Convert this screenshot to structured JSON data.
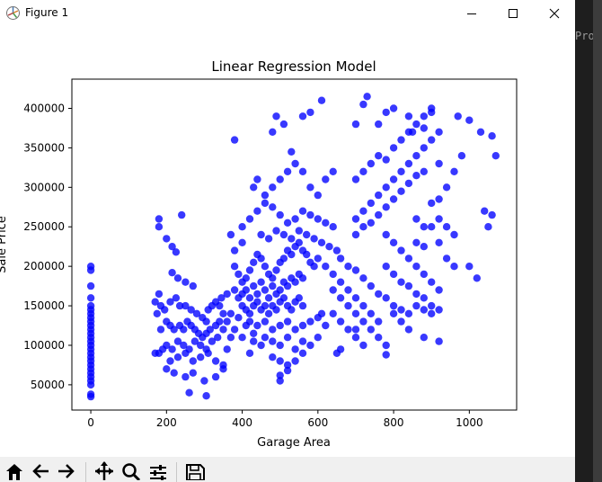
{
  "window": {
    "title": "Figure 1",
    "controls": {
      "minimize": "minimize",
      "maximize": "maximize",
      "close": "close"
    }
  },
  "background_app": {
    "text": "Proj"
  },
  "toolbar": {
    "buttons": [
      "home-icon",
      "back-icon",
      "forward-icon",
      "pan-icon",
      "zoom-icon",
      "configure-icon",
      "save-icon"
    ]
  },
  "chart_data": {
    "type": "scatter",
    "title": "Linear Regression Model",
    "xlabel": "Garage Area",
    "ylabel": "Sale Price",
    "xlim": [
      -50,
      1125
    ],
    "ylim": [
      18000,
      437000
    ],
    "xticks": [
      0,
      200,
      400,
      600,
      800,
      1000
    ],
    "yticks": [
      50000,
      100000,
      150000,
      200000,
      250000,
      300000,
      350000,
      400000
    ],
    "grid": false,
    "marker_color": "#0000ff",
    "points": [
      [
        0,
        35000
      ],
      [
        0,
        38000
      ],
      [
        0,
        50000
      ],
      [
        0,
        55000
      ],
      [
        0,
        60000
      ],
      [
        0,
        65000
      ],
      [
        0,
        70000
      ],
      [
        0,
        75000
      ],
      [
        0,
        80000
      ],
      [
        0,
        85000
      ],
      [
        0,
        90000
      ],
      [
        0,
        95000
      ],
      [
        0,
        100000
      ],
      [
        0,
        105000
      ],
      [
        0,
        110000
      ],
      [
        0,
        115000
      ],
      [
        0,
        120000
      ],
      [
        0,
        125000
      ],
      [
        0,
        130000
      ],
      [
        0,
        135000
      ],
      [
        0,
        140000
      ],
      [
        0,
        145000
      ],
      [
        0,
        150000
      ],
      [
        0,
        160000
      ],
      [
        0,
        175000
      ],
      [
        0,
        195000
      ],
      [
        0,
        200000
      ],
      [
        180,
        260000
      ],
      [
        180,
        250000
      ],
      [
        200,
        235000
      ],
      [
        215,
        225000
      ],
      [
        225,
        218000
      ],
      [
        240,
        265000
      ],
      [
        215,
        192000
      ],
      [
        230,
        185000
      ],
      [
        250,
        180000
      ],
      [
        270,
        175000
      ],
      [
        180,
        165000
      ],
      [
        185,
        150000
      ],
      [
        170,
        155000
      ],
      [
        175,
        140000
      ],
      [
        195,
        145000
      ],
      [
        210,
        155000
      ],
      [
        225,
        160000
      ],
      [
        235,
        150000
      ],
      [
        250,
        150000
      ],
      [
        265,
        145000
      ],
      [
        280,
        140000
      ],
      [
        295,
        135000
      ],
      [
        305,
        130000
      ],
      [
        310,
        145000
      ],
      [
        320,
        150000
      ],
      [
        330,
        155000
      ],
      [
        345,
        160000
      ],
      [
        360,
        165000
      ],
      [
        200,
        130000
      ],
      [
        210,
        125000
      ],
      [
        220,
        120000
      ],
      [
        235,
        125000
      ],
      [
        245,
        120000
      ],
      [
        255,
        130000
      ],
      [
        265,
        125000
      ],
      [
        275,
        120000
      ],
      [
        285,
        115000
      ],
      [
        295,
        110000
      ],
      [
        305,
        115000
      ],
      [
        315,
        120000
      ],
      [
        330,
        125000
      ],
      [
        340,
        130000
      ],
      [
        200,
        100000
      ],
      [
        215,
        95000
      ],
      [
        230,
        105000
      ],
      [
        245,
        100000
      ],
      [
        260,
        95000
      ],
      [
        275,
        105000
      ],
      [
        290,
        100000
      ],
      [
        305,
        95000
      ],
      [
        320,
        105000
      ],
      [
        335,
        110000
      ],
      [
        210,
        80000
      ],
      [
        230,
        85000
      ],
      [
        250,
        90000
      ],
      [
        270,
        80000
      ],
      [
        290,
        85000
      ],
      [
        310,
        90000
      ],
      [
        330,
        80000
      ],
      [
        350,
        75000
      ],
      [
        180,
        90000
      ],
      [
        200,
        70000
      ],
      [
        220,
        65000
      ],
      [
        250,
        60000
      ],
      [
        270,
        65000
      ],
      [
        300,
        55000
      ],
      [
        330,
        60000
      ],
      [
        350,
        70000
      ],
      [
        260,
        40000
      ],
      [
        305,
        36000
      ],
      [
        190,
        95000
      ],
      [
        185,
        120000
      ],
      [
        170,
        90000
      ],
      [
        380,
        200000
      ],
      [
        390,
        190000
      ],
      [
        400,
        180000
      ],
      [
        410,
        185000
      ],
      [
        420,
        195000
      ],
      [
        430,
        205000
      ],
      [
        440,
        215000
      ],
      [
        450,
        210000
      ],
      [
        460,
        200000
      ],
      [
        470,
        190000
      ],
      [
        480,
        185000
      ],
      [
        490,
        195000
      ],
      [
        500,
        205000
      ],
      [
        510,
        210000
      ],
      [
        520,
        220000
      ],
      [
        530,
        215000
      ],
      [
        540,
        225000
      ],
      [
        550,
        230000
      ],
      [
        560,
        220000
      ],
      [
        570,
        215000
      ],
      [
        580,
        205000
      ],
      [
        590,
        200000
      ],
      [
        600,
        210000
      ],
      [
        380,
        170000
      ],
      [
        390,
        160000
      ],
      [
        400,
        165000
      ],
      [
        410,
        170000
      ],
      [
        420,
        160000
      ],
      [
        430,
        175000
      ],
      [
        440,
        165000
      ],
      [
        450,
        180000
      ],
      [
        460,
        170000
      ],
      [
        470,
        160000
      ],
      [
        480,
        175000
      ],
      [
        490,
        165000
      ],
      [
        500,
        170000
      ],
      [
        510,
        180000
      ],
      [
        520,
        175000
      ],
      [
        530,
        185000
      ],
      [
        540,
        180000
      ],
      [
        550,
        190000
      ],
      [
        560,
        185000
      ],
      [
        400,
        150000
      ],
      [
        410,
        145000
      ],
      [
        420,
        140000
      ],
      [
        430,
        150000
      ],
      [
        440,
        155000
      ],
      [
        450,
        145000
      ],
      [
        460,
        150000
      ],
      [
        470,
        140000
      ],
      [
        480,
        150000
      ],
      [
        490,
        145000
      ],
      [
        500,
        155000
      ],
      [
        510,
        160000
      ],
      [
        520,
        150000
      ],
      [
        530,
        145000
      ],
      [
        540,
        155000
      ],
      [
        550,
        160000
      ],
      [
        560,
        150000
      ],
      [
        420,
        130000
      ],
      [
        440,
        125000
      ],
      [
        460,
        130000
      ],
      [
        480,
        120000
      ],
      [
        500,
        125000
      ],
      [
        520,
        130000
      ],
      [
        540,
        120000
      ],
      [
        560,
        125000
      ],
      [
        580,
        130000
      ],
      [
        600,
        135000
      ],
      [
        460,
        110000
      ],
      [
        480,
        105000
      ],
      [
        500,
        100000
      ],
      [
        520,
        110000
      ],
      [
        540,
        95000
      ],
      [
        560,
        105000
      ],
      [
        580,
        100000
      ],
      [
        600,
        110000
      ],
      [
        480,
        85000
      ],
      [
        500,
        80000
      ],
      [
        520,
        75000
      ],
      [
        540,
        80000
      ],
      [
        560,
        90000
      ],
      [
        500,
        62000
      ],
      [
        520,
        68000
      ],
      [
        500,
        55000
      ],
      [
        360,
        95000
      ],
      [
        370,
        110000
      ],
      [
        350,
        120000
      ],
      [
        360,
        130000
      ],
      [
        370,
        140000
      ],
      [
        380,
        120000
      ],
      [
        390,
        135000
      ],
      [
        350,
        140000
      ],
      [
        340,
        150000
      ],
      [
        410,
        125000
      ],
      [
        400,
        110000
      ],
      [
        430,
        115000
      ],
      [
        450,
        100000
      ],
      [
        420,
        90000
      ],
      [
        430,
        105000
      ],
      [
        400,
        250000
      ],
      [
        420,
        260000
      ],
      [
        440,
        270000
      ],
      [
        460,
        280000
      ],
      [
        480,
        275000
      ],
      [
        500,
        265000
      ],
      [
        520,
        255000
      ],
      [
        540,
        260000
      ],
      [
        560,
        270000
      ],
      [
        580,
        265000
      ],
      [
        600,
        260000
      ],
      [
        620,
        255000
      ],
      [
        640,
        250000
      ],
      [
        450,
        240000
      ],
      [
        470,
        235000
      ],
      [
        490,
        245000
      ],
      [
        510,
        240000
      ],
      [
        530,
        235000
      ],
      [
        550,
        245000
      ],
      [
        570,
        240000
      ],
      [
        590,
        235000
      ],
      [
        610,
        230000
      ],
      [
        630,
        225000
      ],
      [
        650,
        220000
      ],
      [
        400,
        230000
      ],
      [
        380,
        220000
      ],
      [
        370,
        240000
      ],
      [
        430,
        300000
      ],
      [
        440,
        310000
      ],
      [
        460,
        290000
      ],
      [
        480,
        300000
      ],
      [
        500,
        310000
      ],
      [
        520,
        320000
      ],
      [
        540,
        330000
      ],
      [
        560,
        320000
      ],
      [
        580,
        300000
      ],
      [
        600,
        290000
      ],
      [
        620,
        310000
      ],
      [
        640,
        320000
      ],
      [
        480,
        370000
      ],
      [
        490,
        390000
      ],
      [
        510,
        380000
      ],
      [
        530,
        345000
      ],
      [
        560,
        390000
      ],
      [
        580,
        395000
      ],
      [
        610,
        410000
      ],
      [
        380,
        360000
      ],
      [
        620,
        200000
      ],
      [
        640,
        190000
      ],
      [
        660,
        180000
      ],
      [
        680,
        170000
      ],
      [
        700,
        160000
      ],
      [
        720,
        150000
      ],
      [
        740,
        140000
      ],
      [
        760,
        130000
      ],
      [
        660,
        210000
      ],
      [
        680,
        200000
      ],
      [
        700,
        195000
      ],
      [
        720,
        185000
      ],
      [
        740,
        175000
      ],
      [
        760,
        165000
      ],
      [
        780,
        160000
      ],
      [
        800,
        150000
      ],
      [
        640,
        170000
      ],
      [
        660,
        160000
      ],
      [
        680,
        150000
      ],
      [
        700,
        140000
      ],
      [
        720,
        130000
      ],
      [
        740,
        120000
      ],
      [
        760,
        110000
      ],
      [
        780,
        100000
      ],
      [
        640,
        140000
      ],
      [
        660,
        130000
      ],
      [
        680,
        120000
      ],
      [
        700,
        110000
      ],
      [
        720,
        100000
      ],
      [
        650,
        90000
      ],
      [
        660,
        95000
      ],
      [
        700,
        120000
      ],
      [
        620,
        125000
      ],
      [
        610,
        140000
      ],
      [
        700,
        260000
      ],
      [
        720,
        270000
      ],
      [
        740,
        280000
      ],
      [
        760,
        290000
      ],
      [
        780,
        300000
      ],
      [
        800,
        310000
      ],
      [
        820,
        320000
      ],
      [
        840,
        330000
      ],
      [
        860,
        340000
      ],
      [
        880,
        350000
      ],
      [
        900,
        360000
      ],
      [
        920,
        370000
      ],
      [
        700,
        240000
      ],
      [
        720,
        250000
      ],
      [
        740,
        255000
      ],
      [
        760,
        265000
      ],
      [
        780,
        275000
      ],
      [
        800,
        285000
      ],
      [
        820,
        295000
      ],
      [
        840,
        305000
      ],
      [
        860,
        315000
      ],
      [
        880,
        320000
      ],
      [
        700,
        310000
      ],
      [
        720,
        320000
      ],
      [
        740,
        330000
      ],
      [
        760,
        340000
      ],
      [
        780,
        335000
      ],
      [
        800,
        350000
      ],
      [
        820,
        360000
      ],
      [
        840,
        370000
      ],
      [
        860,
        380000
      ],
      [
        880,
        390000
      ],
      [
        900,
        395000
      ],
      [
        700,
        380000
      ],
      [
        720,
        405000
      ],
      [
        730,
        415000
      ],
      [
        760,
        380000
      ],
      [
        780,
        395000
      ],
      [
        800,
        400000
      ],
      [
        840,
        390000
      ],
      [
        850,
        370000
      ],
      [
        880,
        375000
      ],
      [
        900,
        400000
      ],
      [
        780,
        240000
      ],
      [
        800,
        230000
      ],
      [
        820,
        220000
      ],
      [
        840,
        210000
      ],
      [
        860,
        200000
      ],
      [
        880,
        190000
      ],
      [
        900,
        180000
      ],
      [
        920,
        170000
      ],
      [
        780,
        200000
      ],
      [
        800,
        190000
      ],
      [
        820,
        180000
      ],
      [
        840,
        175000
      ],
      [
        860,
        165000
      ],
      [
        880,
        160000
      ],
      [
        900,
        150000
      ],
      [
        920,
        145000
      ],
      [
        800,
        140000
      ],
      [
        820,
        145000
      ],
      [
        840,
        140000
      ],
      [
        860,
        150000
      ],
      [
        880,
        145000
      ],
      [
        900,
        140000
      ],
      [
        920,
        105000
      ],
      [
        880,
        110000
      ],
      [
        780,
        88000
      ],
      [
        820,
        130000
      ],
      [
        840,
        120000
      ],
      [
        900,
        250000
      ],
      [
        920,
        260000
      ],
      [
        940,
        250000
      ],
      [
        960,
        240000
      ],
      [
        900,
        280000
      ],
      [
        920,
        285000
      ],
      [
        940,
        300000
      ],
      [
        960,
        320000
      ],
      [
        980,
        340000
      ],
      [
        920,
        330000
      ],
      [
        860,
        260000
      ],
      [
        880,
        250000
      ],
      [
        860,
        230000
      ],
      [
        880,
        225000
      ],
      [
        920,
        230000
      ],
      [
        1000,
        385000
      ],
      [
        1030,
        370000
      ],
      [
        1060,
        365000
      ],
      [
        1070,
        340000
      ],
      [
        970,
        390000
      ],
      [
        1040,
        270000
      ],
      [
        1060,
        265000
      ],
      [
        1050,
        250000
      ],
      [
        1000,
        200000
      ],
      [
        1020,
        185000
      ],
      [
        960,
        200000
      ],
      [
        940,
        210000
      ]
    ]
  }
}
